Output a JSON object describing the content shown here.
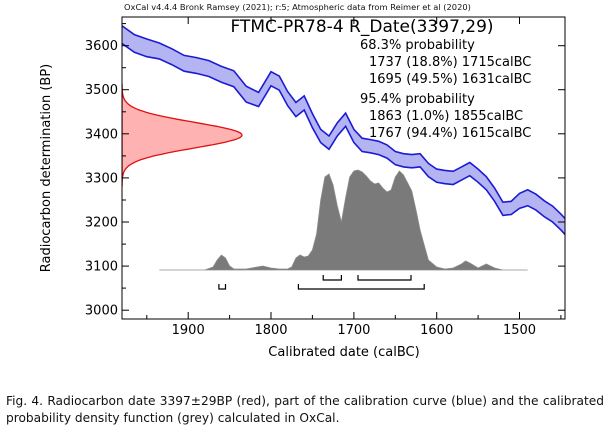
{
  "chart_data": {
    "type": "area",
    "header": "OxCal v4.4.4 Bronk Ramsey (2021); r:5; Atmospheric data from Reimer et al (2020)",
    "title": "FTMC-PR78-4 R_Date(3397,29)",
    "xlabel": "Calibrated date (calBC)",
    "ylabel": "Radiocarbon determination (BP)",
    "xlim": [
      1980,
      1445
    ],
    "ylim": [
      2980,
      3665
    ],
    "xticks": [
      1900,
      1800,
      1700,
      1600,
      1500
    ],
    "xtick_labels": [
      "1900",
      "1800",
      "1700",
      "1600",
      "1500"
    ],
    "yticks": [
      3000,
      3100,
      3200,
      3300,
      3400,
      3500,
      3600
    ],
    "ytick_labels": [
      "3000",
      "3100",
      "3200",
      "3300",
      "3400",
      "3500",
      "3600"
    ],
    "annotations": [
      "68.3% probability",
      "1737 (18.8%) 1715calBC",
      "1695 (49.5%) 1631calBC",
      "95.4% probability",
      "1863 (1.0%) 1855calBC",
      "1767 (94.4%) 1615calBC"
    ],
    "radiocarbon_date": {
      "name": "R_Date",
      "mean": 3397,
      "sigma": 29,
      "color": "#ff0000"
    },
    "calibration_curve": {
      "name": "IntCal20 calibration curve",
      "color": "#0000ff",
      "x": [
        1980,
        1965,
        1950,
        1935,
        1920,
        1905,
        1890,
        1875,
        1860,
        1845,
        1830,
        1815,
        1800,
        1790,
        1780,
        1770,
        1760,
        1750,
        1740,
        1730,
        1720,
        1710,
        1700,
        1690,
        1680,
        1670,
        1660,
        1650,
        1640,
        1630,
        1620,
        1610,
        1600,
        1590,
        1580,
        1570,
        1560,
        1550,
        1540,
        1530,
        1520,
        1510,
        1500,
        1490,
        1480,
        1470,
        1460,
        1450,
        1445
      ],
      "y": [
        3625,
        3605,
        3595,
        3588,
        3575,
        3560,
        3555,
        3548,
        3535,
        3525,
        3490,
        3478,
        3525,
        3515,
        3480,
        3455,
        3470,
        3430,
        3395,
        3380,
        3410,
        3432,
        3395,
        3375,
        3372,
        3368,
        3360,
        3345,
        3340,
        3338,
        3340,
        3318,
        3305,
        3302,
        3300,
        3310,
        3320,
        3305,
        3288,
        3262,
        3230,
        3232,
        3248,
        3255,
        3245,
        3230,
        3218,
        3200,
        3190
      ],
      "half_width": [
        20,
        20,
        20,
        18,
        18,
        18,
        18,
        18,
        18,
        18,
        18,
        16,
        16,
        16,
        16,
        16,
        16,
        16,
        15,
        15,
        15,
        15,
        15,
        15,
        15,
        15,
        15,
        15,
        15,
        15,
        15,
        15,
        15,
        15,
        15,
        15,
        15,
        15,
        15,
        15,
        15,
        15,
        17,
        18,
        18,
        18,
        18,
        18,
        18
      ]
    },
    "probability_distribution": {
      "name": "calibrated probability density",
      "color": "#707070",
      "x": [
        1935,
        1880,
        1870,
        1865,
        1860,
        1855,
        1850,
        1845,
        1830,
        1810,
        1800,
        1790,
        1780,
        1775,
        1770,
        1765,
        1760,
        1755,
        1750,
        1745,
        1740,
        1735,
        1730,
        1725,
        1720,
        1715,
        1710,
        1705,
        1700,
        1695,
        1690,
        1685,
        1680,
        1675,
        1670,
        1665,
        1660,
        1655,
        1650,
        1645,
        1640,
        1635,
        1630,
        1625,
        1620,
        1615,
        1610,
        1600,
        1590,
        1580,
        1570,
        1565,
        1560,
        1550,
        1545,
        1540,
        1530,
        1520,
        1490
      ],
      "y": [
        0,
        0,
        0.03,
        0.1,
        0.15,
        0.12,
        0.04,
        0.01,
        0.01,
        0.04,
        0.02,
        0.01,
        0.01,
        0.03,
        0.12,
        0.15,
        0.13,
        0.14,
        0.2,
        0.36,
        0.7,
        0.93,
        0.96,
        0.85,
        0.64,
        0.48,
        0.72,
        0.93,
        0.99,
        1.0,
        0.98,
        0.94,
        0.89,
        0.86,
        0.87,
        0.82,
        0.78,
        0.8,
        0.93,
        0.99,
        0.95,
        0.87,
        0.79,
        0.6,
        0.4,
        0.25,
        0.1,
        0.03,
        0.01,
        0.02,
        0.06,
        0.09,
        0.07,
        0.02,
        0.04,
        0.06,
        0.02,
        0,
        0
      ]
    },
    "ranges": {
      "68.3%": [
        [
          1737,
          1715
        ],
        [
          1695,
          1631
        ]
      ],
      "95.4%": [
        [
          1863,
          1855
        ],
        [
          1767,
          1615
        ]
      ]
    }
  },
  "caption": "Fig. 4. Radiocarbon date 3397±29BP (red), part of the calibration curve (blue) and the calibrated probability density function (grey) calculated in OxCal."
}
